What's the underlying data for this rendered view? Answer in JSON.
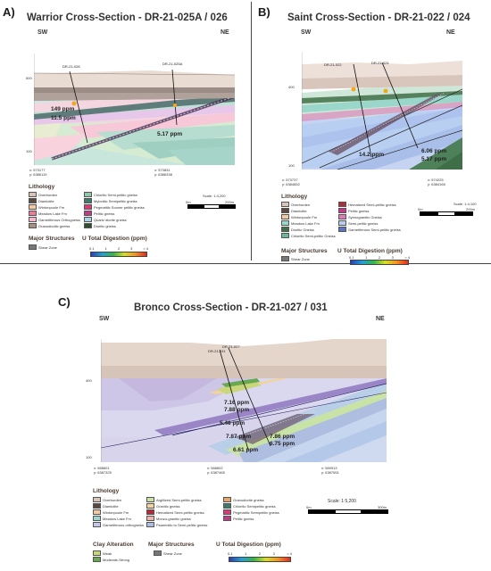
{
  "panels": {
    "a": {
      "label": "A)",
      "title": "Warrior Cross-Section - DR-21-025A / 026",
      "dir_left": "SW",
      "dir_right": "NE",
      "holes": [
        "DR-21-026",
        "DR-21-025A"
      ],
      "depths": [
        "500",
        "100"
      ],
      "values": [
        "149 ppm",
        "11.5 ppm",
        "5.17 ppm"
      ],
      "coords": [
        "x: 573177",
        "y: 6386119",
        "x: 573831",
        "y: 6386338"
      ],
      "scale_text": "Scale: 1:4,200",
      "scale_start": "0m",
      "scale_end": "200m"
    },
    "b": {
      "label": "B)",
      "title": "Saint Cross-Section - DR-21-022 / 024",
      "dir_left": "SW",
      "dir_right": "NE",
      "holes": [
        "DR-21-022",
        "DR-21-024"
      ],
      "depths": [
        "400",
        "100"
      ],
      "values": [
        "14.2 ppm",
        "6.06 ppm",
        "5.17 ppm"
      ],
      "coords": [
        "x: 573737",
        "y: 6384852",
        "x: 574225",
        "y: 6384165"
      ],
      "scale_text": "Scale: 1:4,100",
      "scale_start": "0m",
      "scale_end": "200m"
    },
    "c": {
      "label": "C)",
      "title": "Bronco Cross-Section - DR-21-027 / 031",
      "dir_left": "SW",
      "dir_right": "NE",
      "holes": [
        "DR-21-031",
        "DR-21-027"
      ],
      "depths": [
        "400",
        "100"
      ],
      "values": [
        "7.16 ppm",
        "7.88 ppm",
        "5.46 ppm",
        "7.87 ppm",
        "7.86 ppm",
        "6.75 ppm",
        "6.61 ppm"
      ],
      "coords": [
        "x: 568601",
        "y: 6387325",
        "x: 568602",
        "y: 6387465",
        "x: 569913",
        "y: 6387651"
      ],
      "scale_text": "Scale: 1:5,200",
      "scale_start": "0m",
      "scale_end": "300m"
    }
  },
  "legend_a": {
    "lithology_title": "Lithology",
    "items": [
      {
        "label": "Overburden",
        "color": "#d9c4b8"
      },
      {
        "label": "Chloritic Semi-pelitic gneiss",
        "color": "#8fc9a8"
      },
      {
        "label": "Diamictite",
        "color": "#5a4a42"
      },
      {
        "label": "Mylonitic Semipelitic gneiss",
        "color": "#3e7a6a"
      },
      {
        "label": "Wintonpoule Fm",
        "color": "#f2c9a2"
      },
      {
        "label": "Pegmatitic Sooner pelitic gneiss",
        "color": "#d63b7a"
      },
      {
        "label": "Meadow Lake Fm",
        "color": "#f07a9a"
      },
      {
        "label": "Pelitic gneiss",
        "color": "#c2398a"
      },
      {
        "label": "Garnetiferous Orthogneiss",
        "color": "#f5b8c8"
      },
      {
        "label": "Quartz diorite gneiss",
        "color": "#a7d4e8"
      },
      {
        "label": "Granodioritic gneiss",
        "color": "#a89080"
      },
      {
        "label": "Dioritic gneiss",
        "color": "#2f4f2f"
      }
    ],
    "structures_title": "Major Structures",
    "shear_label": "Shear Zone",
    "digestion_title": "U Total Digestion (ppm)",
    "ticks": [
      "0.1",
      "1",
      "2",
      "3",
      "> 4"
    ]
  },
  "legend_b": {
    "lithology_title": "Lithology",
    "items": [
      {
        "label": "Overburden",
        "color": "#d9c4b8"
      },
      {
        "label": "Hematized Semi-pelitic gneiss",
        "color": "#b22b3a"
      },
      {
        "label": "Diamictite",
        "color": "#5a4a42"
      },
      {
        "label": "Pelitic gneiss",
        "color": "#c2398a"
      },
      {
        "label": "Wintonpoule Fm",
        "color": "#f2c9a2"
      },
      {
        "label": "Syenogranitic Gneiss",
        "color": "#e07ab8"
      },
      {
        "label": "Meadow Lake Fm",
        "color": "#9ad6c9"
      },
      {
        "label": "Semi-pelitic gneiss",
        "color": "#b9cff2"
      },
      {
        "label": "Dioritic Gneiss",
        "color": "#3f6e48"
      },
      {
        "label": "Garnetiferous Semi-pelitic gneiss",
        "color": "#5a73c2"
      },
      {
        "label": "Chloritic Semi-pelitic Gneiss",
        "color": "#6fb59a"
      }
    ],
    "structures_title": "Major Structures",
    "shear_label": "Shear Zone",
    "digestion_title": "U Total Digestion (ppm)",
    "ticks": [
      "0.1",
      "1",
      "2",
      "3",
      "> 4"
    ]
  },
  "legend_c": {
    "lithology_title": "Lithology",
    "items": [
      {
        "label": "Overburden",
        "color": "#d9c4b8"
      },
      {
        "label": "Argillized Semi-pelitic gneiss",
        "color": "#c9e3a6"
      },
      {
        "label": "Granodiorite gneiss",
        "color": "#e6a56b"
      },
      {
        "label": "Diamictite",
        "color": "#5a4a42"
      },
      {
        "label": "Granitic gneiss",
        "color": "#f2d39c"
      },
      {
        "label": "Chloritic Semipelitic gneiss",
        "color": "#3e7a6a"
      },
      {
        "label": "Wintonpoule Fm",
        "color": "#f2c9a2"
      },
      {
        "label": "Hematized Semi-pelitic gneiss",
        "color": "#b22b3a"
      },
      {
        "label": "Pegmatitic Semipelitic gneiss",
        "color": "#d63b7a"
      },
      {
        "label": "Meadow Lake Fm",
        "color": "#9ad6c9"
      },
      {
        "label": "Monzo-granitic gneiss",
        "color": "#f0b7a8"
      },
      {
        "label": "Pelitic gneiss",
        "color": "#c2398a"
      },
      {
        "label": "Garnetiferous orthogneiss",
        "color": "#c6c6e8"
      },
      {
        "label": "Psammitic to Semi-pelitic gneiss",
        "color": "#aebee0"
      }
    ],
    "clay_title": "Clay Alteration",
    "clay_items": [
      {
        "label": "Weak",
        "color": "#c9d77a"
      },
      {
        "label": "Moderate-Strong",
        "color": "#6aa84f"
      }
    ],
    "structures_title": "Major Structures",
    "shear_label": "Shear Zone",
    "digestion_title": "U Total Digestion (ppm)",
    "ticks": [
      "0.1",
      "1",
      "2",
      "3",
      "> 4"
    ]
  }
}
